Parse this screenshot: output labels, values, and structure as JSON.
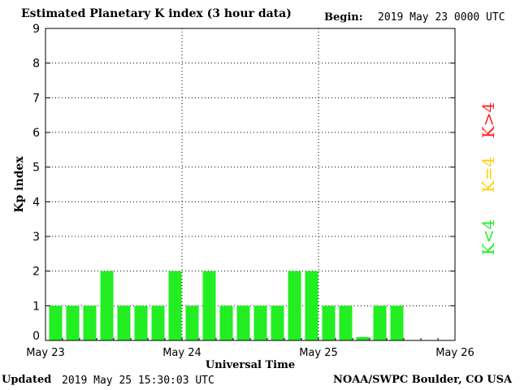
{
  "header": {
    "title": "Estimated Planetary K index (3 hour data)",
    "begin_label": "Begin:",
    "begin_value": "2019 May 23 0000 UTC"
  },
  "footer": {
    "updated_label": "Updated",
    "updated_value": "2019 May 25 15:30:03 UTC",
    "credit": "NOAA/SWPC Boulder, CO USA"
  },
  "legend": [
    {
      "label": "K>4",
      "color": "#ff2020"
    },
    {
      "label": "K=4",
      "color": "#ffd000"
    },
    {
      "label": "K<4",
      "color": "#22ee22"
    }
  ],
  "chart_data": {
    "type": "bar",
    "title": "Estimated Planetary K index (3 hour data)",
    "xlabel": "Universal Time",
    "ylabel": "Kp index",
    "ylim": [
      0,
      9
    ],
    "yticks": [
      "0",
      "1",
      "2",
      "3",
      "4",
      "5",
      "6",
      "7",
      "8",
      "9"
    ],
    "xtick_labels": [
      "May 23",
      "May 24",
      "May 25",
      "May 26"
    ],
    "bar_interval_hours": 3,
    "grid": true,
    "values": [
      1,
      1,
      1,
      2,
      1,
      1,
      1,
      2,
      1,
      2,
      1,
      1,
      1,
      1,
      2,
      2,
      1,
      1,
      0.1,
      1,
      1
    ],
    "bar_color": "#22ee22"
  }
}
